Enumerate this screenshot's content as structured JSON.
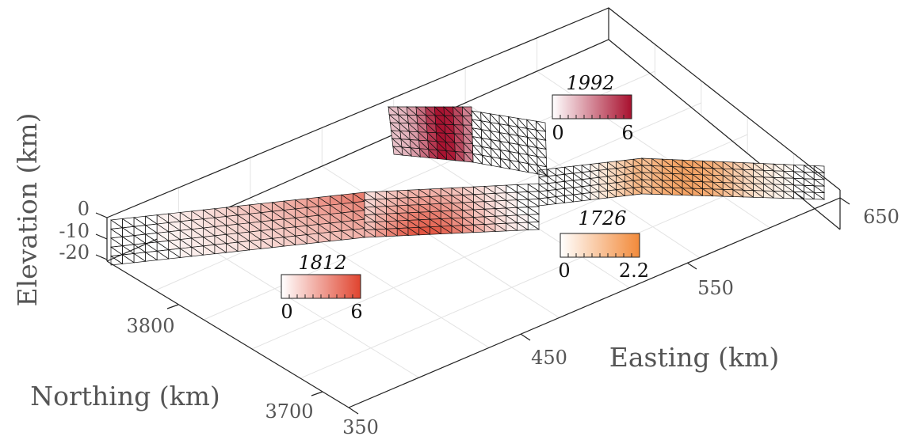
{
  "chart_data": {
    "type": "3d-surface",
    "xlabel": "Easting (km)",
    "ylabel": "Northing (km)",
    "zlabel": "Elevation (km)",
    "x_ticks": [
      "350",
      "450",
      "550",
      "650"
    ],
    "y_ticks": [
      "3700",
      "3800"
    ],
    "z_ticks": [
      "0",
      "-10",
      "-20"
    ],
    "xlim": [
      350,
      680
    ],
    "ylim": [
      3650,
      3900
    ],
    "zlim": [
      -25,
      0
    ],
    "grid": true,
    "ruptures": [
      {
        "name": "1812",
        "color": "#e0442f",
        "cmin": "0",
        "cmax": "6"
      },
      {
        "name": "1992",
        "color": "#a8102e",
        "cmin": "0",
        "cmax": "6"
      },
      {
        "name": "1726",
        "color": "#f28a3a",
        "cmin": "0",
        "cmax": "2.2"
      }
    ]
  }
}
